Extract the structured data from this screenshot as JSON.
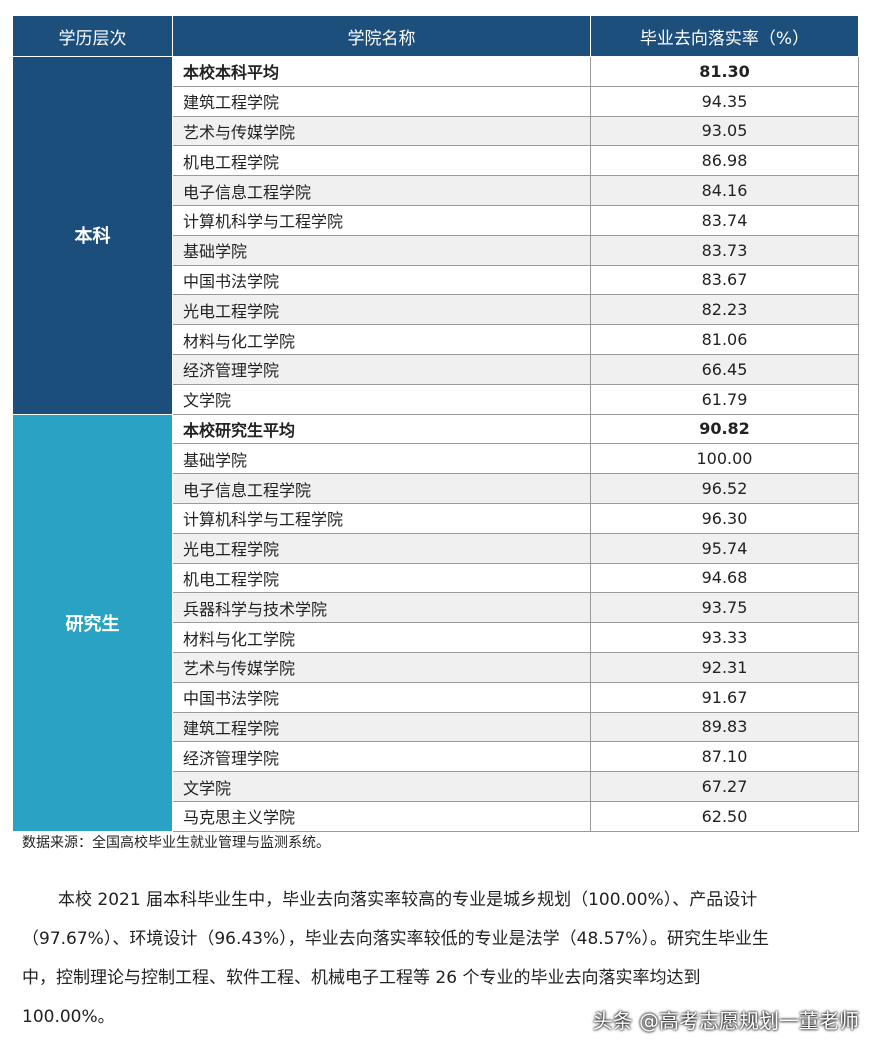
{
  "table": {
    "header": [
      "学历层次",
      "学院名称",
      "毕业去向落实率（%）"
    ],
    "groups": [
      {
        "level": "本科",
        "rows": [
          [
            "本校本科平均",
            "81.30"
          ],
          [
            "建筑工程学院",
            "94.35"
          ],
          [
            "艺术与传媒学院",
            "93.05"
          ],
          [
            "机电工程学院",
            "86.98"
          ],
          [
            "电子信息工程学院",
            "84.16"
          ],
          [
            "计算机科学与工程学院",
            "83.74"
          ],
          [
            "基础学院",
            "83.73"
          ],
          [
            "中国书法学院",
            "83.67"
          ],
          [
            "光电工程学院",
            "82.23"
          ],
          [
            "材料与化工学院",
            "81.06"
          ],
          [
            "经济管理学院",
            "66.45"
          ],
          [
            "文学院",
            "61.79"
          ]
        ]
      },
      {
        "level": "研究生",
        "rows": [
          [
            "本校研究生平均",
            "90.82"
          ],
          [
            "基础学院",
            "100.00"
          ],
          [
            "电子信息工程学院",
            "96.52"
          ],
          [
            "计算机科学与工程学院",
            "96.30"
          ],
          [
            "光电工程学院",
            "95.74"
          ],
          [
            "机电工程学院",
            "94.68"
          ],
          [
            "兵器科学与技术学院",
            "93.75"
          ],
          [
            "材料与化工学院",
            "93.33"
          ],
          [
            "艺术与传媒学院",
            "92.31"
          ],
          [
            "中国书法学院",
            "91.67"
          ],
          [
            "建筑工程学院",
            "89.83"
          ],
          [
            "经济管理学院",
            "87.10"
          ],
          [
            "文学院",
            "67.27"
          ],
          [
            "马克思主义学院",
            "62.50"
          ]
        ]
      }
    ],
    "source": "数据来源：全国高校毕业生就业管理与监测系统。"
  },
  "paragraph": [
    "本校 2021 届本科毕业生中，毕业去向落实率较高的专业是城乡规划（100.00%）、产品设计",
    "（97.67%）、环境设计（96.43%），毕业去向落实率较低的专业是法学（48.57%）。研究生毕业生",
    "中，控制理论与控制工程、软件工程、机械电子工程等 26 个专业的毕业去向落实率均达到",
    "100.00%。"
  ],
  "watermark": "头条 @高考志愿规划一董老师"
}
